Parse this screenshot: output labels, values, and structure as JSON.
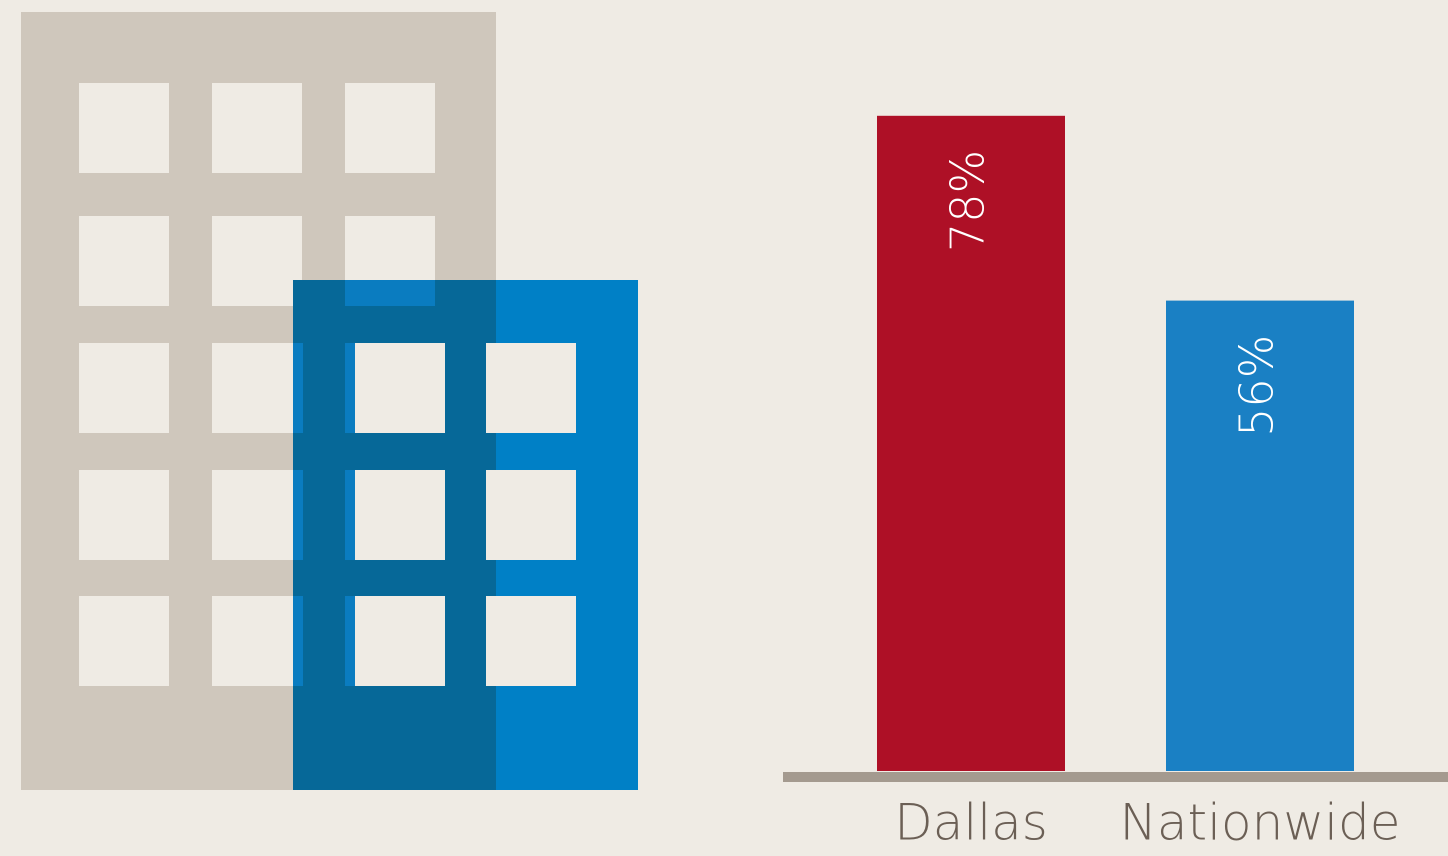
{
  "chart_data": {
    "type": "bar",
    "categories": [
      "Dallas",
      "Nationwide"
    ],
    "values": [
      78,
      56
    ],
    "value_labels": [
      "78%",
      "56%"
    ],
    "colors": [
      "#ae1026",
      "#1a80c4"
    ],
    "ylim": [
      0,
      80
    ]
  }
}
